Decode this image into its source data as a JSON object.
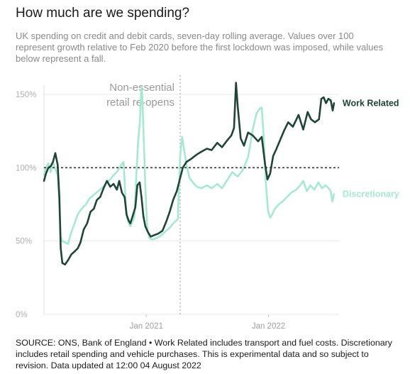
{
  "title": "How much are we spending?",
  "subtitle_lines": [
    "UK spending on credit and debit cards, seven-day rolling average. Values over 100",
    "represent growth relative to Feb 2020 before the first lockdown was imposed, while values",
    "below represent a fall."
  ],
  "footer_lines": [
    "SOURCE: ONS, Bank of England • Work Related includes transport and fuel costs. Discretionary",
    "includes retail spending and vehicle purchases. This is experimental data and so subject to",
    "revision. Data updated at 12:00 04 August 2022"
  ],
  "colors": {
    "work_related": "#1f4438",
    "discretionary": "#a6e8d3",
    "annotation": "#9a9a9a",
    "grid": "#e8e8e8"
  },
  "chart_data": {
    "type": "line",
    "ylim": [
      0,
      150
    ],
    "y_ticks": [
      {
        "value": 0,
        "label": "0%"
      },
      {
        "value": 50,
        "label": "50%"
      },
      {
        "value": 100,
        "label": "100%"
      },
      {
        "value": 150,
        "label": "150%"
      }
    ],
    "x_range": [
      "2020-03-01",
      "2022-07-31"
    ],
    "x_ticks": [
      {
        "date": "2021-01-01",
        "label": "Jan 2021"
      },
      {
        "date": "2022-01-01",
        "label": "Jan 2022"
      }
    ],
    "reference_line": 100,
    "annotation": {
      "date": "2021-04-12",
      "lines": [
        "Non-essential",
        "retail re-opens"
      ]
    },
    "series": [
      {
        "name": "Work Related",
        "key": "work_related",
        "points": [
          [
            "2020-03-01",
            91
          ],
          [
            "2020-03-07",
            96
          ],
          [
            "2020-03-14",
            100
          ],
          [
            "2020-03-21",
            101
          ],
          [
            "2020-03-28",
            104
          ],
          [
            "2020-04-04",
            110
          ],
          [
            "2020-04-11",
            102
          ],
          [
            "2020-04-16",
            80
          ],
          [
            "2020-04-20",
            45
          ],
          [
            "2020-04-25",
            35
          ],
          [
            "2020-05-03",
            34
          ],
          [
            "2020-05-12",
            37
          ],
          [
            "2020-05-22",
            41
          ],
          [
            "2020-06-01",
            43
          ],
          [
            "2020-06-10",
            45
          ],
          [
            "2020-06-18",
            49
          ],
          [
            "2020-06-28",
            58
          ],
          [
            "2020-07-08",
            62
          ],
          [
            "2020-07-18",
            70
          ],
          [
            "2020-07-28",
            72
          ],
          [
            "2020-08-06",
            78
          ],
          [
            "2020-08-16",
            80
          ],
          [
            "2020-08-26",
            86
          ],
          [
            "2020-09-05",
            91
          ],
          [
            "2020-09-15",
            87
          ],
          [
            "2020-09-25",
            89
          ],
          [
            "2020-10-05",
            85
          ],
          [
            "2020-10-12",
            91
          ],
          [
            "2020-10-20",
            83
          ],
          [
            "2020-10-28",
            80
          ],
          [
            "2020-11-03",
            68
          ],
          [
            "2020-11-09",
            64
          ],
          [
            "2020-11-14",
            62
          ],
          [
            "2020-11-21",
            67
          ],
          [
            "2020-11-29",
            73
          ],
          [
            "2020-12-05",
            88
          ],
          [
            "2020-12-12",
            90
          ],
          [
            "2020-12-18",
            79
          ],
          [
            "2020-12-23",
            67
          ],
          [
            "2020-12-29",
            60
          ],
          [
            "2021-01-06",
            56
          ],
          [
            "2021-01-14",
            53
          ],
          [
            "2021-01-24",
            54
          ],
          [
            "2021-02-05",
            55
          ],
          [
            "2021-02-18",
            57
          ],
          [
            "2021-03-01",
            63
          ],
          [
            "2021-03-12",
            70
          ],
          [
            "2021-03-22",
            78
          ],
          [
            "2021-04-02",
            84
          ],
          [
            "2021-04-12",
            93
          ],
          [
            "2021-04-20",
            100
          ],
          [
            "2021-05-01",
            104
          ],
          [
            "2021-05-15",
            106
          ],
          [
            "2021-06-01",
            109
          ],
          [
            "2021-06-15",
            111
          ],
          [
            "2021-07-01",
            113
          ],
          [
            "2021-07-15",
            112
          ],
          [
            "2021-08-01",
            117
          ],
          [
            "2021-08-15",
            114
          ],
          [
            "2021-09-01",
            119
          ],
          [
            "2021-09-12",
            122
          ],
          [
            "2021-09-20",
            127
          ],
          [
            "2021-09-26",
            158
          ],
          [
            "2021-10-01",
            142
          ],
          [
            "2021-10-10",
            120
          ],
          [
            "2021-10-20",
            115
          ],
          [
            "2021-11-01",
            124
          ],
          [
            "2021-11-15",
            122
          ],
          [
            "2021-12-01",
            118
          ],
          [
            "2021-12-12",
            121
          ],
          [
            "2021-12-22",
            102
          ],
          [
            "2021-12-29",
            92
          ],
          [
            "2022-01-06",
            96
          ],
          [
            "2022-01-15",
            108
          ],
          [
            "2022-01-25",
            113
          ],
          [
            "2022-02-05",
            119
          ],
          [
            "2022-02-16",
            125
          ],
          [
            "2022-03-01",
            131
          ],
          [
            "2022-03-15",
            128
          ],
          [
            "2022-04-01",
            136
          ],
          [
            "2022-04-15",
            126
          ],
          [
            "2022-04-28",
            138
          ],
          [
            "2022-05-08",
            133
          ],
          [
            "2022-05-20",
            131
          ],
          [
            "2022-06-01",
            133
          ],
          [
            "2022-06-08",
            147
          ],
          [
            "2022-06-15",
            148
          ],
          [
            "2022-06-22",
            144
          ],
          [
            "2022-06-29",
            147
          ],
          [
            "2022-07-06",
            146
          ],
          [
            "2022-07-12",
            139
          ],
          [
            "2022-07-16",
            144
          ]
        ]
      },
      {
        "name": "Discretionary",
        "key": "discretionary",
        "points": [
          [
            "2020-03-01",
            95
          ],
          [
            "2020-03-07",
            100
          ],
          [
            "2020-03-14",
            103
          ],
          [
            "2020-03-21",
            97
          ],
          [
            "2020-03-28",
            104
          ],
          [
            "2020-04-04",
            99
          ],
          [
            "2020-04-11",
            95
          ],
          [
            "2020-04-16",
            75
          ],
          [
            "2020-04-20",
            53
          ],
          [
            "2020-04-25",
            50
          ],
          [
            "2020-05-03",
            49
          ],
          [
            "2020-05-12",
            48
          ],
          [
            "2020-05-20",
            55
          ],
          [
            "2020-05-30",
            61
          ],
          [
            "2020-06-08",
            67
          ],
          [
            "2020-06-15",
            70
          ],
          [
            "2020-06-25",
            73
          ],
          [
            "2020-07-05",
            75
          ],
          [
            "2020-07-15",
            79
          ],
          [
            "2020-07-25",
            81
          ],
          [
            "2020-08-05",
            83
          ],
          [
            "2020-08-15",
            85
          ],
          [
            "2020-08-25",
            87
          ],
          [
            "2020-09-05",
            90
          ],
          [
            "2020-09-15",
            92
          ],
          [
            "2020-09-25",
            95
          ],
          [
            "2020-10-05",
            97
          ],
          [
            "2020-10-15",
            101
          ],
          [
            "2020-10-25",
            104
          ],
          [
            "2020-11-02",
            68
          ],
          [
            "2020-11-08",
            63
          ],
          [
            "2020-11-14",
            60
          ],
          [
            "2020-11-20",
            63
          ],
          [
            "2020-11-26",
            66
          ],
          [
            "2020-12-02",
            95
          ],
          [
            "2020-12-08",
            120
          ],
          [
            "2020-12-12",
            129
          ],
          [
            "2020-12-17",
            155
          ],
          [
            "2020-12-20",
            148
          ],
          [
            "2020-12-24",
            120
          ],
          [
            "2020-12-29",
            87
          ],
          [
            "2021-01-04",
            58
          ],
          [
            "2021-01-10",
            52
          ],
          [
            "2021-01-18",
            51
          ],
          [
            "2021-02-01",
            52
          ],
          [
            "2021-02-15",
            54
          ],
          [
            "2021-03-01",
            57
          ],
          [
            "2021-03-12",
            59
          ],
          [
            "2021-03-22",
            62
          ],
          [
            "2021-04-05",
            65
          ],
          [
            "2021-04-12",
            108
          ],
          [
            "2021-04-18",
            121
          ],
          [
            "2021-04-22",
            115
          ],
          [
            "2021-05-01",
            102
          ],
          [
            "2021-05-10",
            93
          ],
          [
            "2021-05-20",
            90
          ],
          [
            "2021-06-01",
            87
          ],
          [
            "2021-06-15",
            86
          ],
          [
            "2021-07-01",
            88
          ],
          [
            "2021-07-15",
            86
          ],
          [
            "2021-08-01",
            89
          ],
          [
            "2021-08-15",
            86
          ],
          [
            "2021-09-01",
            92
          ],
          [
            "2021-09-15",
            97
          ],
          [
            "2021-10-01",
            94
          ],
          [
            "2021-10-15",
            98
          ],
          [
            "2021-11-01",
            107
          ],
          [
            "2021-11-15",
            126
          ],
          [
            "2021-11-26",
            137
          ],
          [
            "2021-12-05",
            140
          ],
          [
            "2021-12-12",
            141
          ],
          [
            "2021-12-18",
            120
          ],
          [
            "2021-12-24",
            90
          ],
          [
            "2021-12-31",
            70
          ],
          [
            "2022-01-06",
            66
          ],
          [
            "2022-01-12",
            68
          ],
          [
            "2022-01-20",
            72
          ],
          [
            "2022-02-01",
            75
          ],
          [
            "2022-02-12",
            77
          ],
          [
            "2022-02-25",
            80
          ],
          [
            "2022-03-10",
            83
          ],
          [
            "2022-03-25",
            85
          ],
          [
            "2022-04-06",
            88
          ],
          [
            "2022-04-15",
            91
          ],
          [
            "2022-04-26",
            84
          ],
          [
            "2022-05-06",
            88
          ],
          [
            "2022-05-18",
            85
          ],
          [
            "2022-05-30",
            90
          ],
          [
            "2022-06-10",
            86
          ],
          [
            "2022-06-20",
            88
          ],
          [
            "2022-06-30",
            86
          ],
          [
            "2022-07-06",
            84
          ],
          [
            "2022-07-11",
            77
          ],
          [
            "2022-07-16",
            82
          ]
        ]
      }
    ]
  }
}
